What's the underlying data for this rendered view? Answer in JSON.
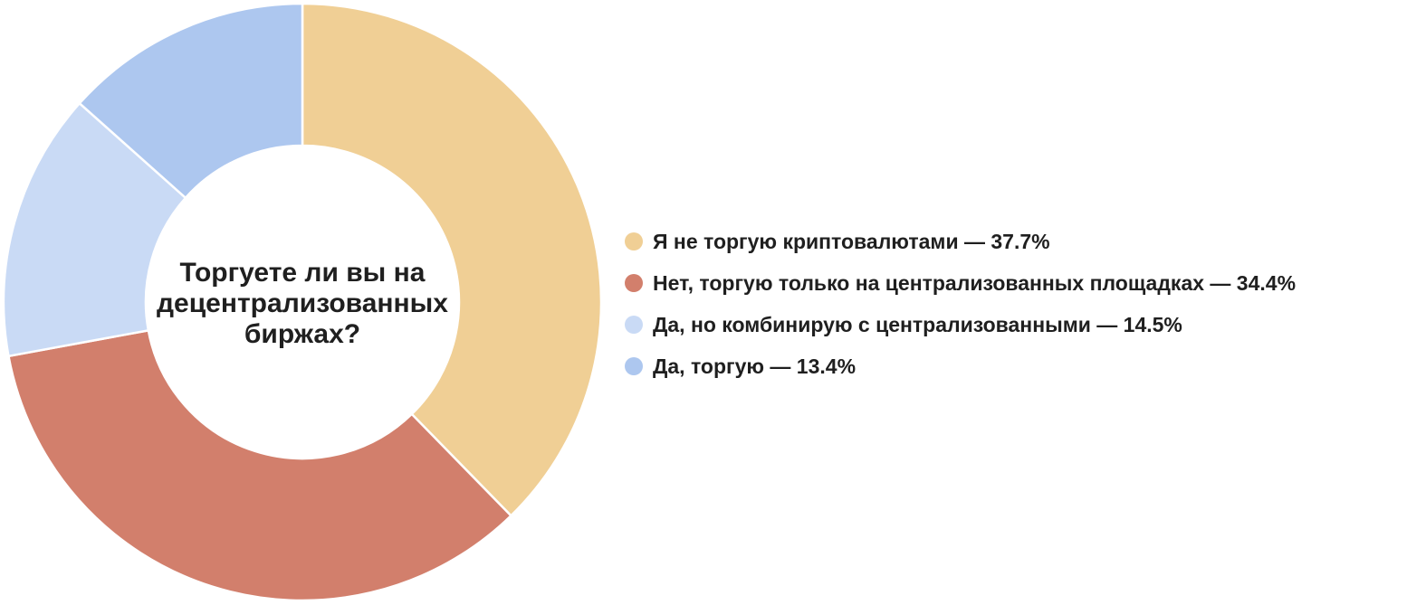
{
  "chart_data": {
    "type": "pie",
    "variant": "donut",
    "title": "Торгуете ли вы на\nдецентрализованных\nбиржах?",
    "legend_position": "right",
    "series": [
      {
        "label": "Я не торгую криптовалютами",
        "value": 37.7,
        "display": "Я не торгую криптовалютами — 37.7%",
        "color": "#f0cf95"
      },
      {
        "label": "Нет, торгую только на централизованных площадках",
        "value": 34.4,
        "display": "Нет, торгую только на централизованных площадках — 34.4%",
        "color": "#d27f6c"
      },
      {
        "label": "Да, но комбинирую с централизованными",
        "value": 14.5,
        "display": "Да, но комбинирую с централизованными — 14.5%",
        "color": "#c9daf5"
      },
      {
        "label": "Да, торгую",
        "value": 13.4,
        "display": "Да, торгую — 13.4%",
        "color": "#adc7ef"
      }
    ]
  }
}
